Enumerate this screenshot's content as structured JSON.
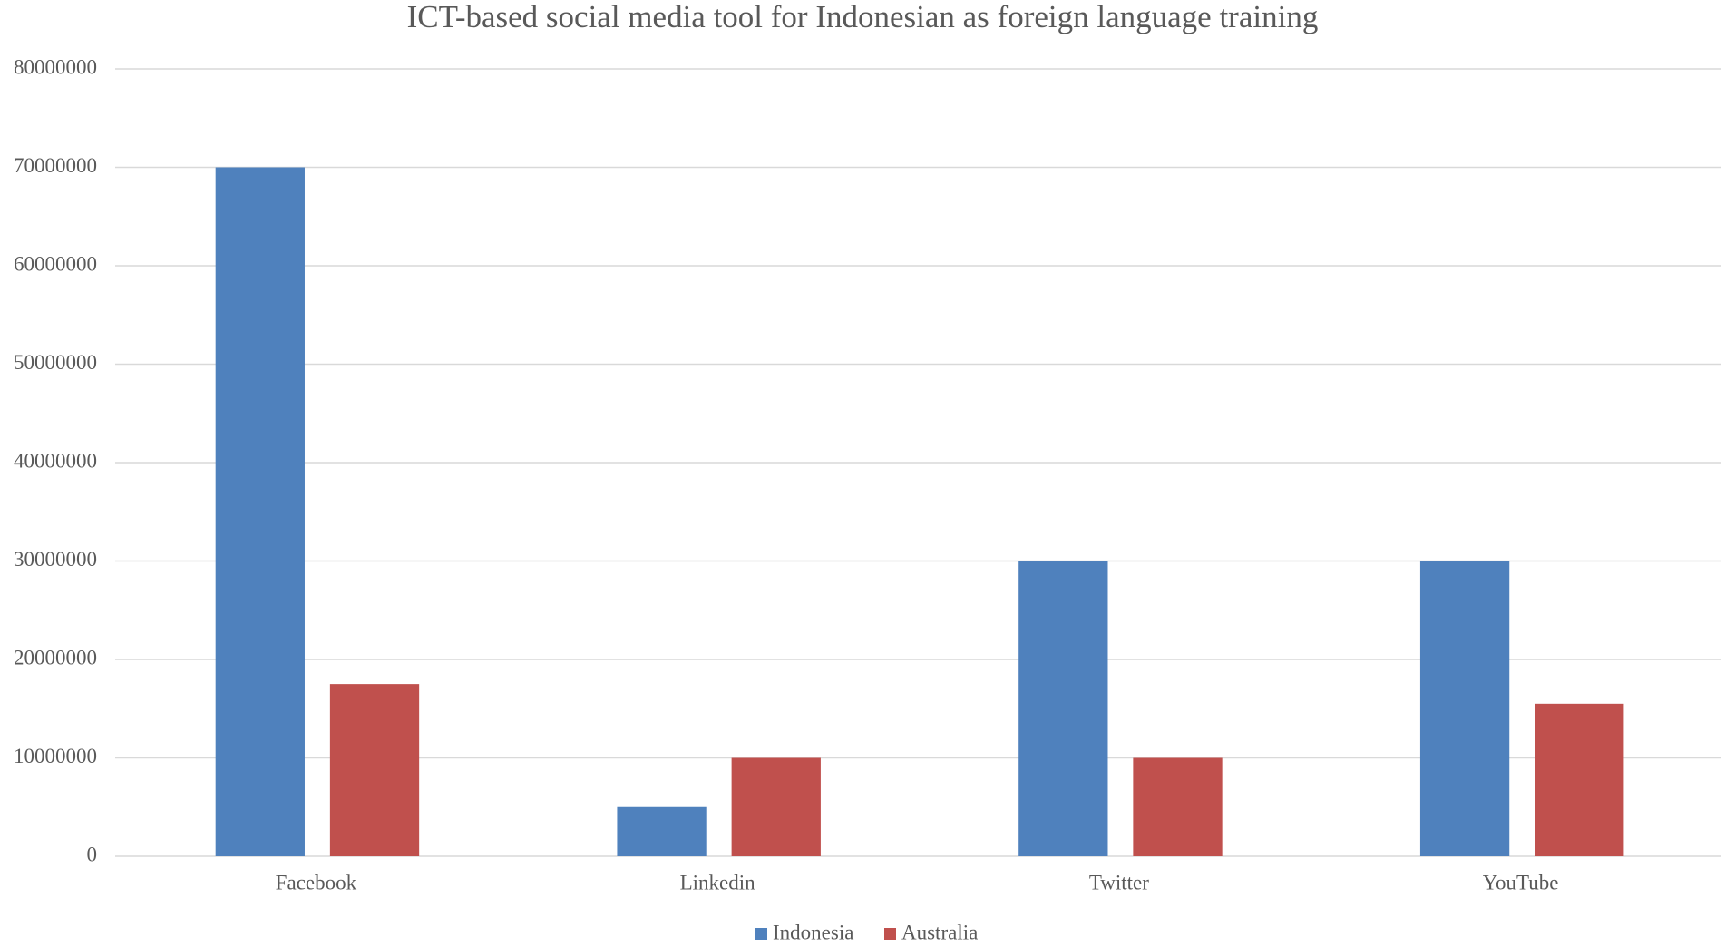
{
  "chart_data": {
    "type": "bar",
    "title": "ICT-based social media tool for Indonesian as foreign language training",
    "categories": [
      "Facebook",
      "Linkedin",
      "Twitter",
      "YouTube"
    ],
    "series": [
      {
        "name": "Indonesia",
        "color": "#4f81bd",
        "values": [
          70000000,
          5000000,
          30000000,
          30000000
        ]
      },
      {
        "name": "Australia",
        "color": "#c0504d",
        "values": [
          17500000,
          10000000,
          10000000,
          15500000
        ]
      }
    ],
    "ylim": [
      0,
      80000000
    ],
    "yticks": [
      0,
      10000000,
      20000000,
      30000000,
      40000000,
      50000000,
      60000000,
      70000000,
      80000000
    ],
    "grid": true,
    "legend": "bottom"
  }
}
